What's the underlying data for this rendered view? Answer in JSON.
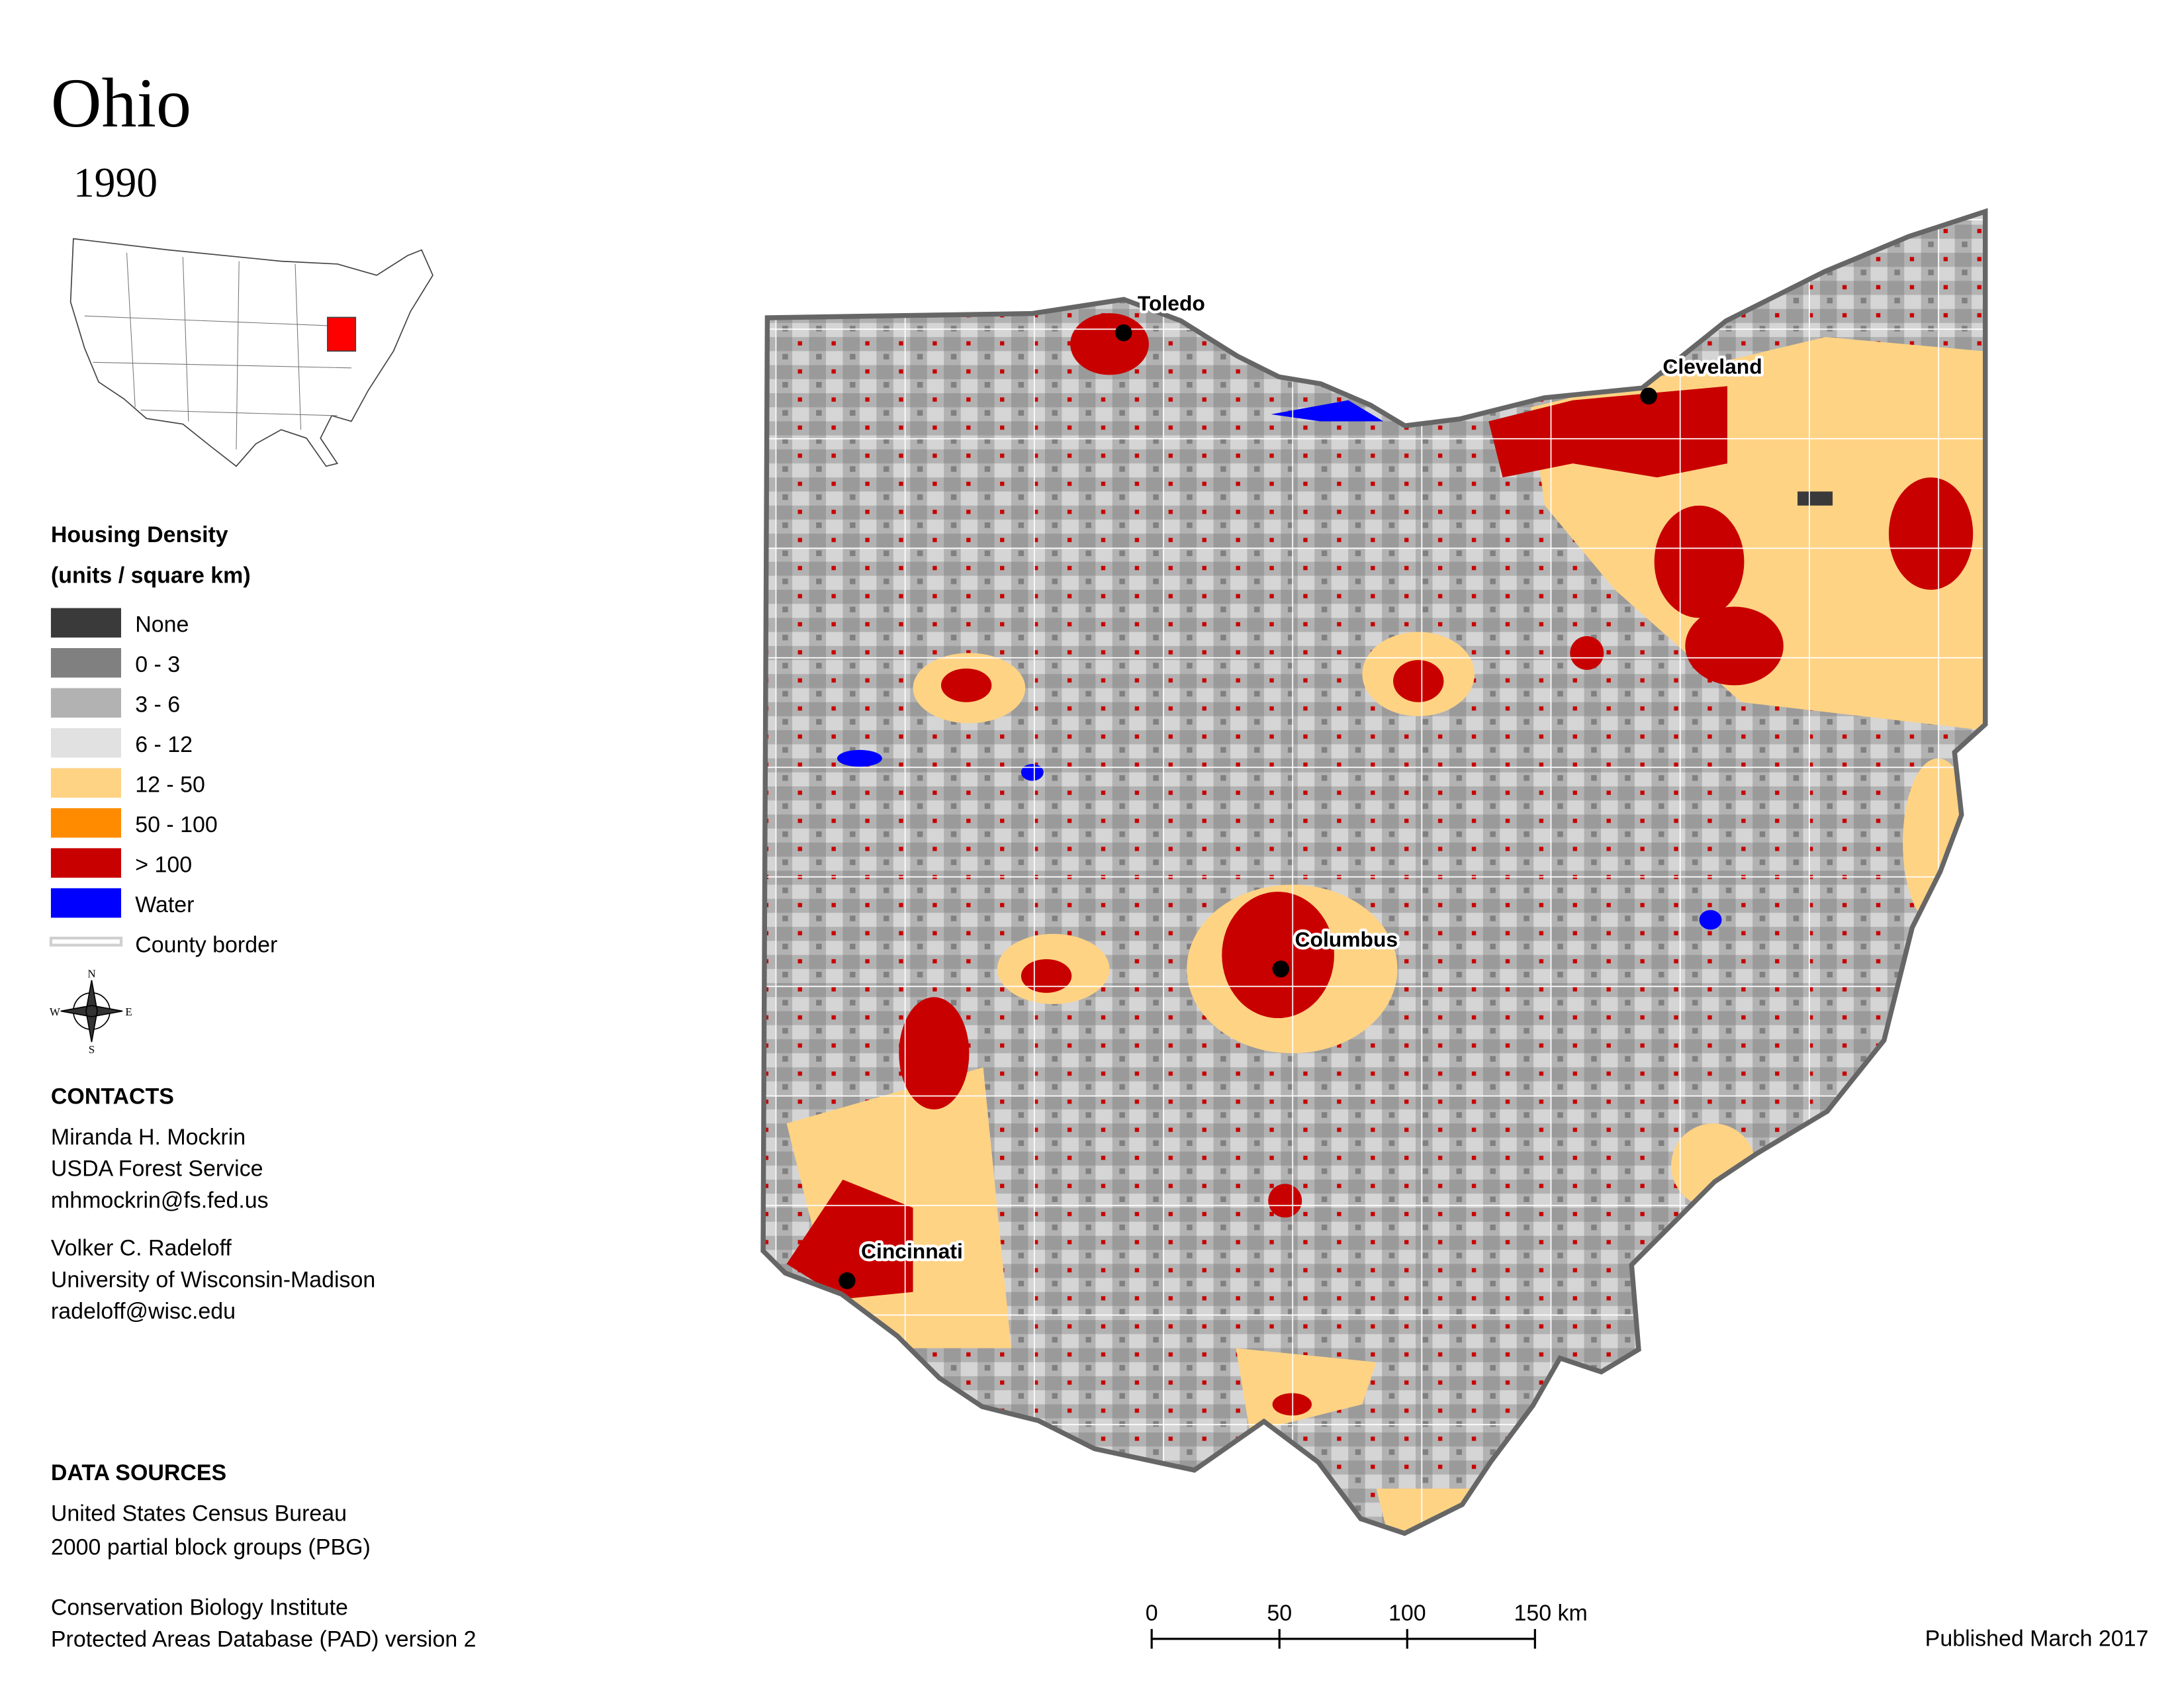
{
  "header": {
    "title": "Ohio",
    "subtitle": "1990"
  },
  "legend": {
    "title": "Housing Density",
    "units": "(units / square km)",
    "items": [
      {
        "label": "None",
        "color": "#3a3a3a"
      },
      {
        "label": "0 - 3",
        "color": "#808080"
      },
      {
        "label": "3 - 6",
        "color": "#b2b2b2"
      },
      {
        "label": "6 - 12",
        "color": "#e1e1e1"
      },
      {
        "label": "12 - 50",
        "color": "#ffd384"
      },
      {
        "label": "50 - 100",
        "color": "#ff8c00"
      },
      {
        "label": "> 100",
        "color": "#c80000"
      },
      {
        "label": "Water",
        "color": "#0000ff"
      },
      {
        "label": "County border",
        "color": "#d0d0d0"
      }
    ]
  },
  "map": {
    "cities": [
      "Toledo",
      "Cleveland",
      "Columbus",
      "Cincinnati"
    ]
  },
  "contacts": {
    "title": "CONTACTS",
    "people": [
      [
        "Miranda H. Mockrin",
        "USDA Forest Service",
        "mhmockrin@fs.fed.us"
      ],
      [
        "Volker C. Radeloff",
        "University of Wisconsin-Madison",
        "radeloff@wisc.edu"
      ]
    ]
  },
  "data_sources": {
    "title": "DATA SOURCES",
    "lines": [
      "United States Census Bureau",
      "2000 partial block groups (PBG)",
      "Conservation Biology Institute",
      "Protected Areas Database (PAD) version 2"
    ]
  },
  "scale_bar": {
    "labels": [
      "0",
      "50",
      "100",
      "150 km"
    ]
  },
  "footer": {
    "published": "Published March 2017"
  }
}
